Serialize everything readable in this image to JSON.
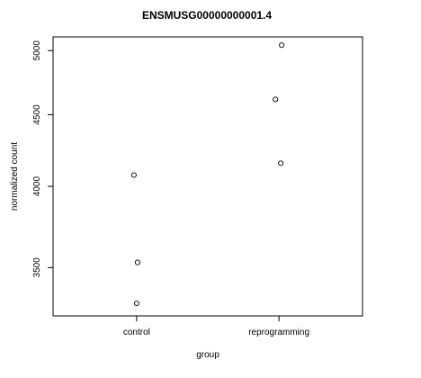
{
  "chart_data": {
    "type": "scatter",
    "title": "ENSMUSG00000000001.4",
    "xlabel": "group",
    "ylabel": "normalized count",
    "categories": [
      "control",
      "reprogramming"
    ],
    "points": [
      {
        "group": "control",
        "y": 4075
      },
      {
        "group": "control",
        "y": 3530
      },
      {
        "group": "control",
        "y": 3300
      },
      {
        "group": "reprogramming",
        "y": 5045
      },
      {
        "group": "reprogramming",
        "y": 4615
      },
      {
        "group": "reprogramming",
        "y": 4155
      }
    ],
    "yticks": [
      {
        "value": 3500,
        "label": "3500"
      },
      {
        "value": 4000,
        "label": "4000"
      },
      {
        "value": 4500,
        "label": "4500"
      },
      {
        "value": 5000,
        "label": "5000"
      }
    ],
    "yscale": "log",
    "ylim": [
      3233,
      5114
    ],
    "grid": false,
    "legend": "none"
  }
}
